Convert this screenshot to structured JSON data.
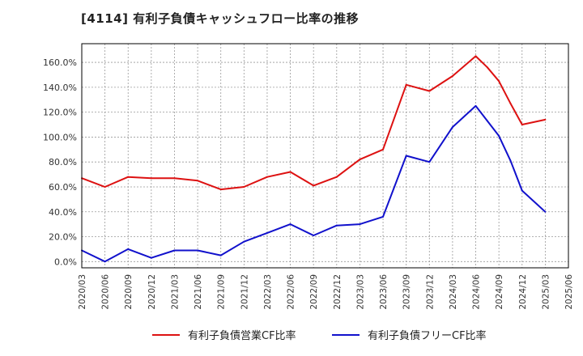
{
  "page_title": "[4114]  有利子負債キャッシュフロー比率の推移",
  "chart_data": {
    "type": "line",
    "title": "[4114]  有利子負債キャッシュフロー比率の推移",
    "xlabel": "",
    "ylabel": "",
    "ylim": [
      -5,
      175
    ],
    "y_ticks": [
      0,
      20,
      40,
      60,
      80,
      100,
      120,
      140,
      160
    ],
    "y_tick_labels": [
      "0.0%",
      "20.0%",
      "40.0%",
      "60.0%",
      "80.0%",
      "100.0%",
      "120.0%",
      "140.0%",
      "160.0%"
    ],
    "categories": [
      "2020/03",
      "2020/06",
      "2020/09",
      "2020/12",
      "2021/03",
      "2021/06",
      "2021/09",
      "2021/12",
      "2022/03",
      "2022/06",
      "2022/09",
      "2022/12",
      "2023/03",
      "2023/06",
      "2023/09",
      "2023/12",
      "2024/03",
      "2024/06",
      "2024/09",
      "2024/12",
      "2025/03",
      "2025/06"
    ],
    "grid": true,
    "legend_position": "bottom",
    "series": [
      {
        "name": "有利子負債営業CF比率",
        "color": "#dd1111",
        "x": [
          0,
          1,
          2,
          3,
          4,
          5,
          6,
          7,
          8,
          9,
          10,
          11,
          12,
          13,
          14,
          15,
          16,
          17,
          17.5,
          18,
          18.5,
          19,
          20
        ],
        "values": [
          67,
          60,
          68,
          67,
          67,
          65,
          58,
          60,
          68,
          72,
          61,
          68,
          82,
          90,
          142,
          137,
          149,
          165,
          156,
          145,
          127,
          110,
          114
        ]
      },
      {
        "name": "有利子負債フリーCF比率",
        "color": "#1111cc",
        "x": [
          0,
          1,
          2,
          3,
          4,
          5,
          6,
          7,
          8,
          9,
          10,
          11,
          12,
          13,
          14,
          15,
          16,
          17,
          17.5,
          18,
          18.5,
          19,
          20
        ],
        "values": [
          9,
          0,
          10,
          3,
          9,
          9,
          5,
          16,
          23,
          30,
          21,
          29,
          30,
          36,
          85,
          80,
          108,
          125,
          113,
          101,
          81,
          57,
          40
        ]
      }
    ]
  }
}
